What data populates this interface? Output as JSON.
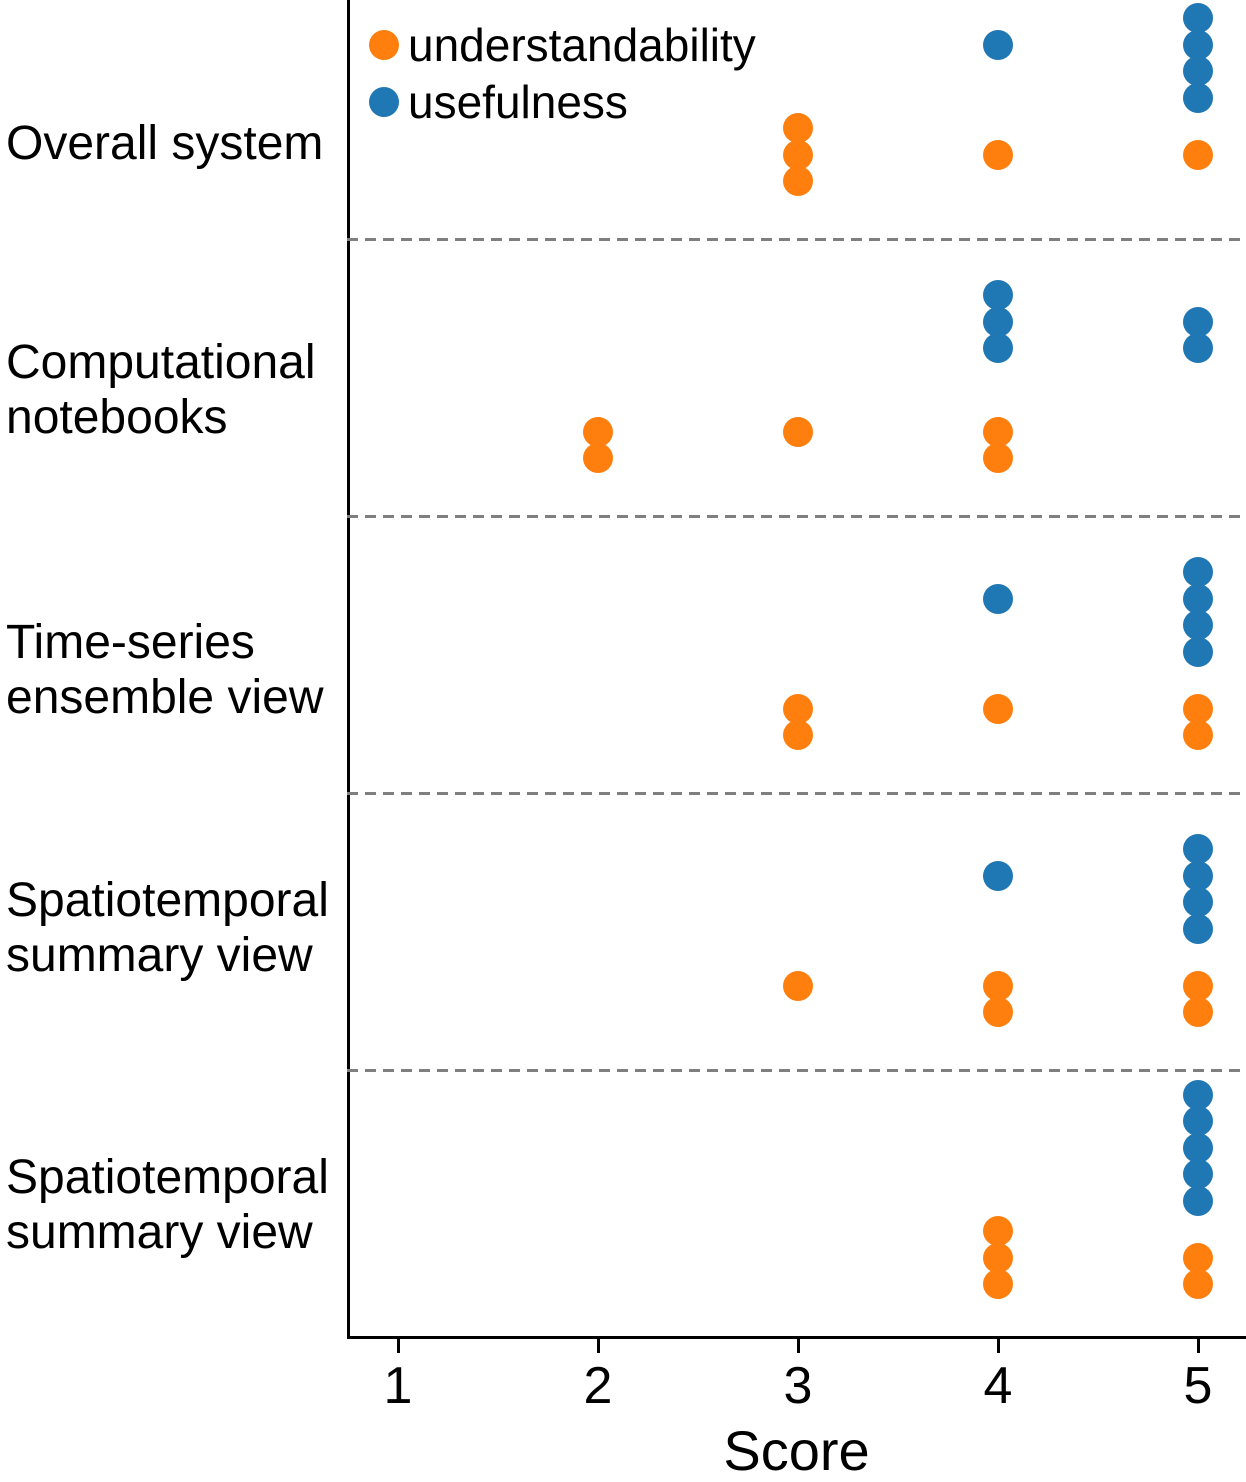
{
  "chart_data": {
    "type": "scatter",
    "subtype": "dot-strip-swarm",
    "title": "",
    "xlabel": "Score",
    "x_ticks": [
      1,
      2,
      3,
      4,
      5
    ],
    "xlim": [
      0.75,
      5.25
    ],
    "grid": false,
    "legend_position": "upper-left-inside",
    "separator_style": "dashed",
    "separator_color": "#7f7f7f",
    "axis_color": "#000000",
    "legend": [
      {
        "label": "understandability",
        "color": "#ff7f0e"
      },
      {
        "label": "usefulness",
        "color": "#1f77b4"
      }
    ],
    "categories": [
      "Overall system",
      "Computational\nnotebooks",
      "Time-series\nensemble view",
      "Spatiotemporal\nsummary view",
      "Spatiotemporal\nsummary view"
    ],
    "series": [
      {
        "name": "usefulness",
        "color": "#1f77b4",
        "row": "upper",
        "counts_per_category": [
          {
            "4": 1,
            "5": 4
          },
          {
            "4": 3,
            "5": 2
          },
          {
            "4": 1,
            "5": 4
          },
          {
            "4": 1,
            "5": 4
          },
          {
            "5": 5
          }
        ]
      },
      {
        "name": "understandability",
        "color": "#ff7f0e",
        "row": "lower",
        "counts_per_category": [
          {
            "3": 3,
            "4": 1,
            "5": 1
          },
          {
            "2": 2,
            "3": 1,
            "4": 2
          },
          {
            "3": 2,
            "4": 1,
            "5": 2
          },
          {
            "3": 1,
            "4": 2,
            "5": 2
          },
          {
            "4": 3,
            "5": 2
          }
        ]
      }
    ]
  }
}
